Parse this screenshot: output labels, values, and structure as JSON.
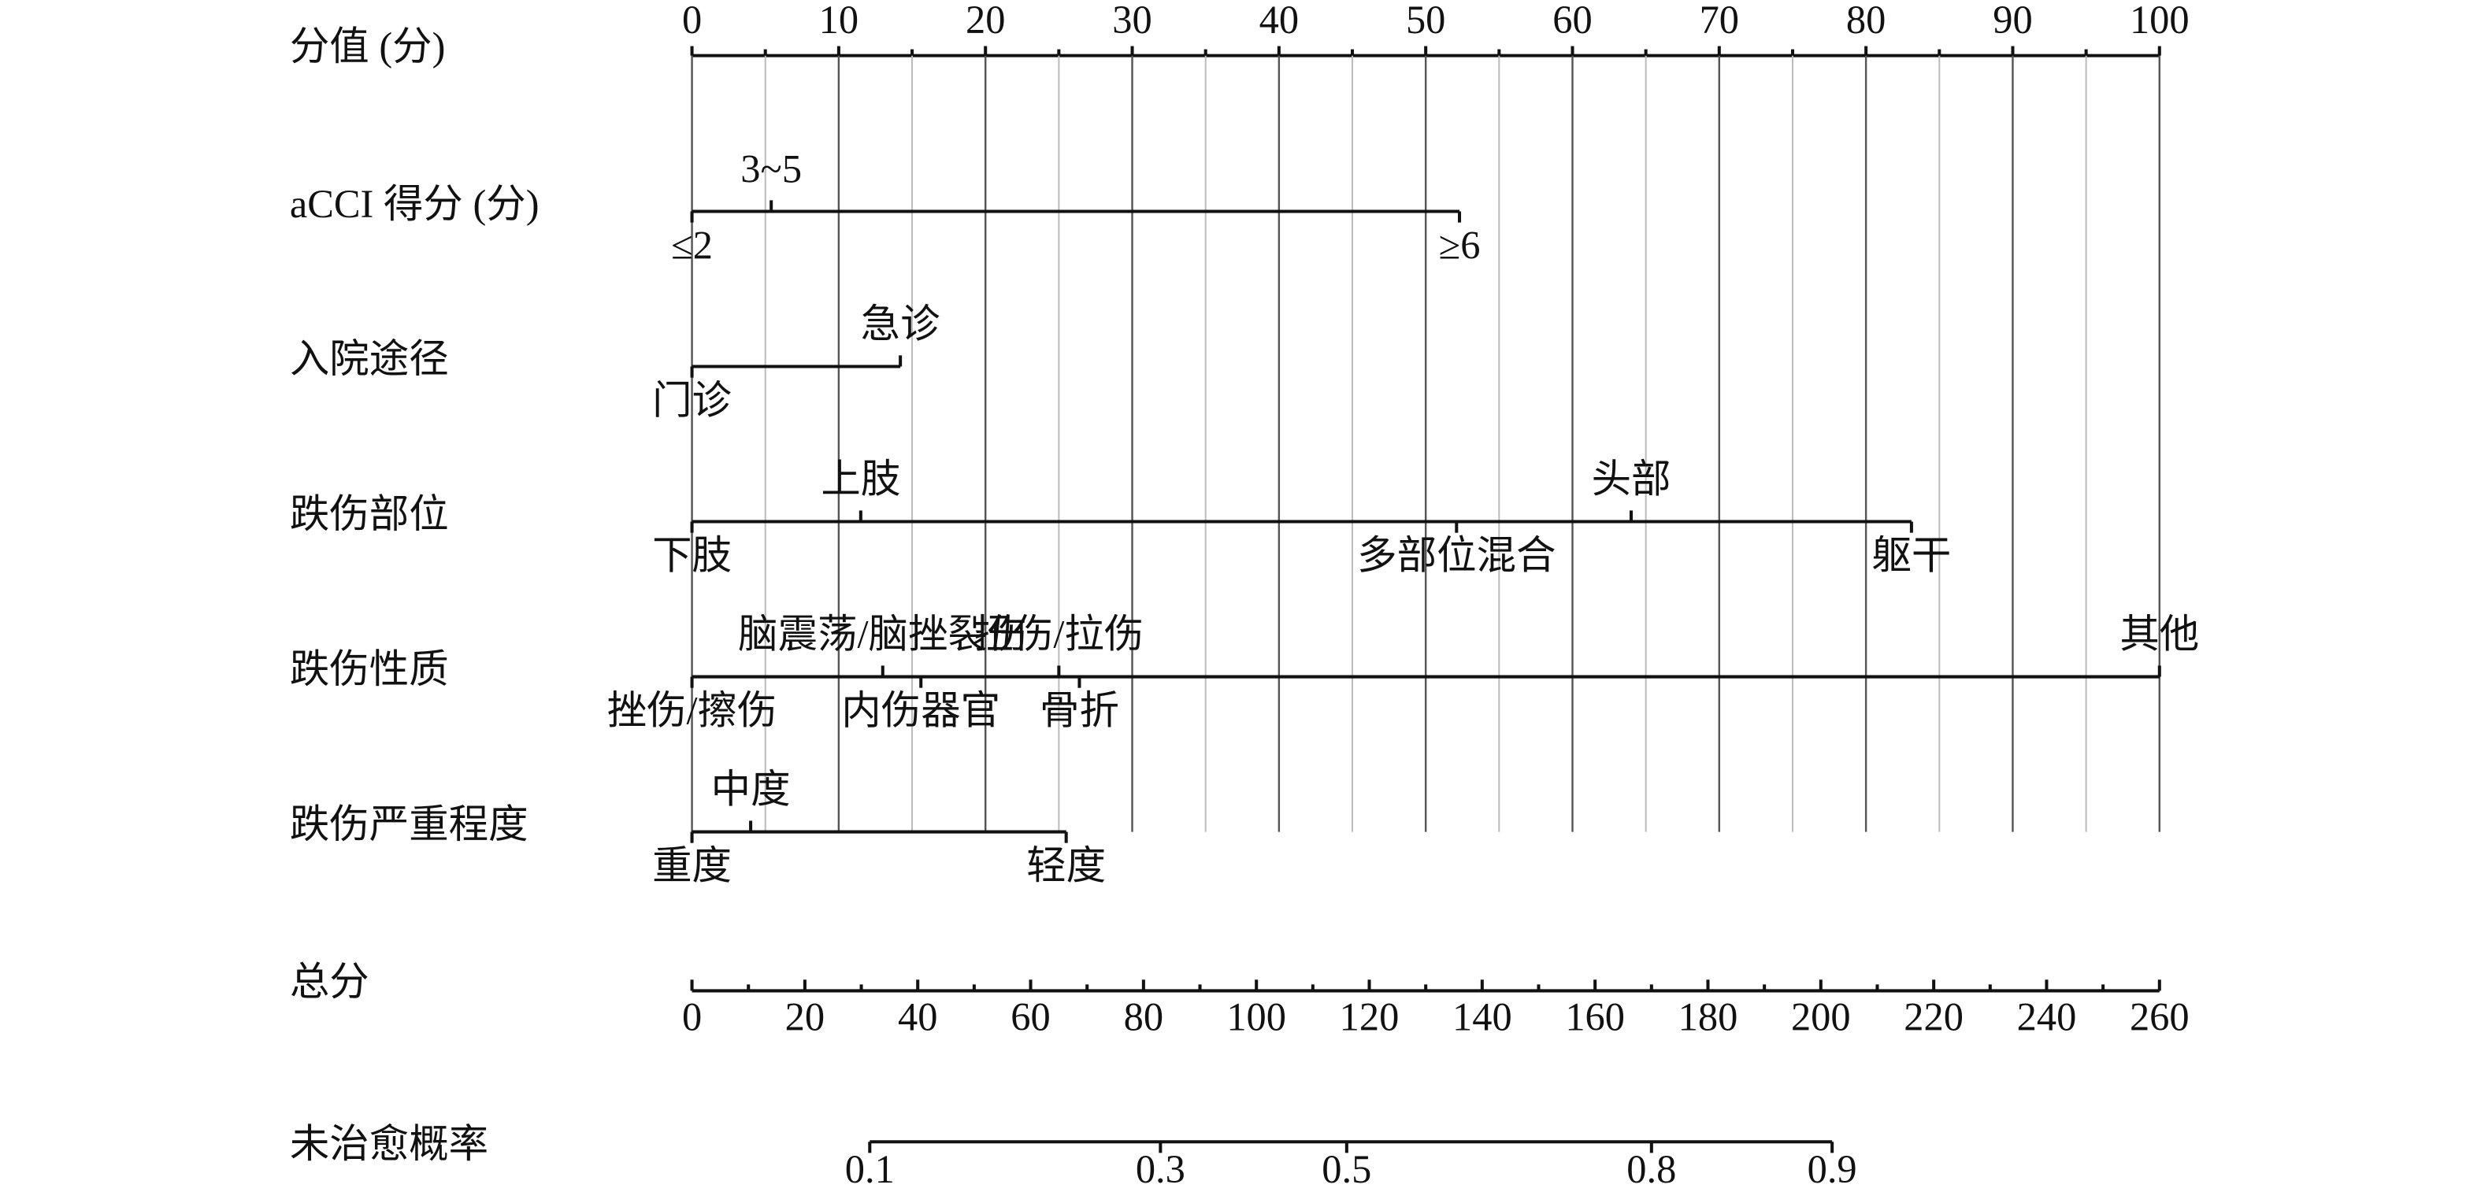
{
  "chart_data": {
    "type": "nomogram",
    "grid": true,
    "points_axis": {
      "name": "分值 (分)",
      "xlim": [
        0,
        100
      ],
      "xticks": [
        0,
        10,
        20,
        30,
        40,
        50,
        60,
        70,
        80,
        90,
        100
      ],
      "minor_xticks": [
        5,
        15,
        25,
        35,
        45,
        55,
        65,
        75,
        85,
        95
      ]
    },
    "variables": [
      {
        "name": "aCCI 得分 (分)",
        "levels": [
          {
            "label": "≤2",
            "points": 0,
            "position": "below"
          },
          {
            "label": "3~5",
            "points": 5.4,
            "position": "above"
          },
          {
            "label": "≥6",
            "points": 52.3,
            "position": "below"
          }
        ]
      },
      {
        "name": "入院途径",
        "levels": [
          {
            "label": "门诊",
            "points": 0,
            "position": "below"
          },
          {
            "label": "急诊",
            "points": 14.2,
            "position": "above"
          }
        ]
      },
      {
        "name": "跌伤部位",
        "levels": [
          {
            "label": "下肢",
            "points": 0,
            "position": "below"
          },
          {
            "label": "上肢",
            "points": 11.5,
            "position": "above"
          },
          {
            "label": "多部位混合",
            "points": 52.1,
            "position": "below"
          },
          {
            "label": "头部",
            "points": 64,
            "position": "above"
          },
          {
            "label": "躯干",
            "points": 83.1,
            "position": "below"
          }
        ]
      },
      {
        "name": "跌伤性质",
        "levels": [
          {
            "label": "挫伤/擦伤",
            "points": 0,
            "position": "below"
          },
          {
            "label": "脑震荡/脑挫裂伤",
            "points": 13,
            "position": "above"
          },
          {
            "label": "内伤器官",
            "points": 15.6,
            "position": "below"
          },
          {
            "label": "扭伤/拉伤",
            "points": 25,
            "position": "above"
          },
          {
            "label": "骨折",
            "points": 26.4,
            "position": "below"
          },
          {
            "label": "其他",
            "points": 100,
            "position": "above"
          }
        ]
      },
      {
        "name": "跌伤严重程度",
        "levels": [
          {
            "label": "重度",
            "points": 0,
            "position": "below"
          },
          {
            "label": "中度",
            "points": 4,
            "position": "above"
          },
          {
            "label": "轻度",
            "points": 25.5,
            "position": "below"
          }
        ]
      }
    ],
    "total_axis": {
      "name": "总分",
      "xlim": [
        0,
        260
      ],
      "xticks": [
        0,
        20,
        40,
        60,
        80,
        100,
        120,
        140,
        160,
        180,
        200,
        220,
        240,
        260
      ],
      "minor_xticks": [
        10,
        30,
        50,
        70,
        90,
        110,
        130,
        150,
        170,
        190,
        210,
        230,
        250
      ]
    },
    "probability_axis": {
      "name": "未治愈概率",
      "ticks": [
        {
          "value": 0.1,
          "points": 31.5
        },
        {
          "value": 0.3,
          "points": 83
        },
        {
          "value": 0.5,
          "points": 116
        },
        {
          "value": 0.8,
          "points": 170
        },
        {
          "value": 0.9,
          "points": 202
        }
      ]
    }
  }
}
